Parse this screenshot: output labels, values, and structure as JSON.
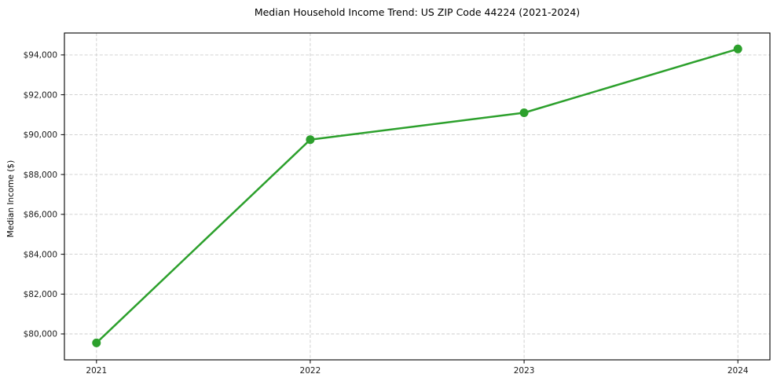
{
  "page": {
    "background": "#ffffff"
  },
  "chart_data": {
    "type": "line",
    "title": "Median Household Income Trend: US ZIP Code 44224 (2021-2024)",
    "xlabel": "",
    "ylabel": "Median Income ($)",
    "categories": [
      "2021",
      "2022",
      "2023",
      "2024"
    ],
    "x": [
      2021,
      2022,
      2023,
      2024
    ],
    "series": [
      {
        "name": "Median household income",
        "values": [
          79550,
          89750,
          91100,
          94300
        ]
      }
    ],
    "x_tick_labels": [
      "2021",
      "2022",
      "2023",
      "2024"
    ],
    "y_ticks": [
      80000,
      82000,
      84000,
      86000,
      88000,
      90000,
      92000,
      94000
    ],
    "y_tick_labels": [
      "$80,000",
      "$82,000",
      "$84,000",
      "$86,000",
      "$88,000",
      "$90,000",
      "$92,000",
      "$94,000"
    ],
    "xlim": [
      2020.85,
      2024.15
    ],
    "ylim": [
      78700,
      95100
    ],
    "grid": "dashed",
    "legend": "none",
    "line_color": "#2ca02c",
    "marker": "circle",
    "grid_color": "#cccccc",
    "spine_color": "#000000",
    "text_color": "#1a1a1a"
  }
}
